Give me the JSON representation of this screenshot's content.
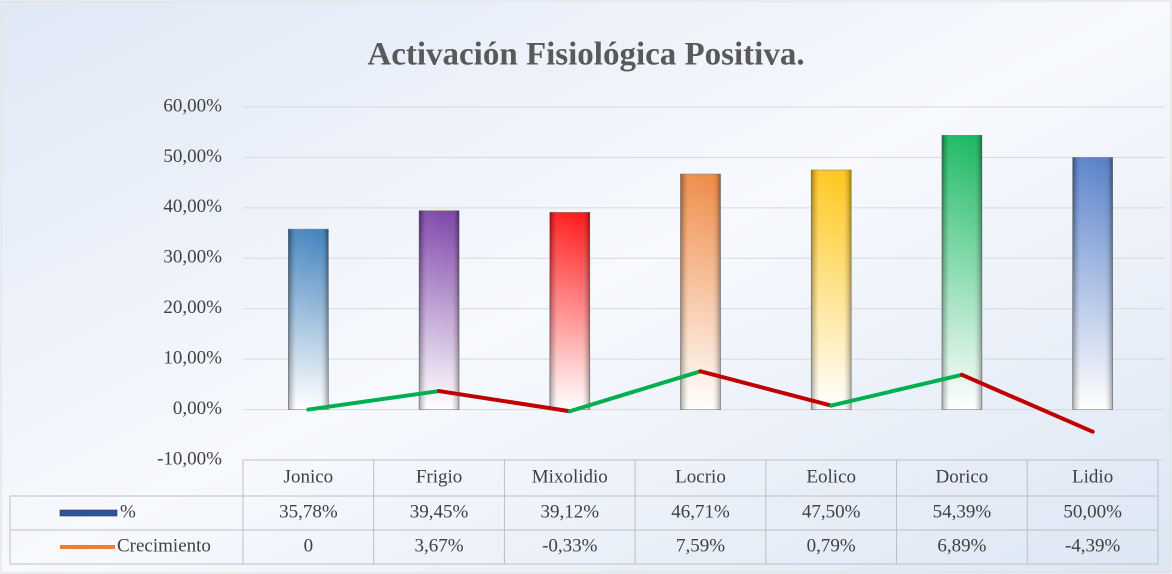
{
  "chart_data": {
    "type": "bar",
    "title": "Activación Fisiológica Positiva.",
    "categories": [
      "Jonico",
      "Frigio",
      "Mixolidio",
      "Locrio",
      "Eolico",
      "Dorico",
      "Lidio"
    ],
    "series": [
      {
        "name": "%",
        "type": "bar",
        "color": "#2f5597",
        "colors": [
          "#2e75b6",
          "#7030a0",
          "#ff0000",
          "#ed7d31",
          "#ffc000",
          "#00b050",
          "#4472c4"
        ],
        "values": [
          35.78,
          39.45,
          39.12,
          46.71,
          47.5,
          54.39,
          50.0
        ],
        "value_labels": [
          "35,78%",
          "39,45%",
          "39,12%",
          "46,71%",
          "47,50%",
          "54,39%",
          "50,00%"
        ]
      },
      {
        "name": "Crecimiento",
        "type": "line",
        "color": "#ed7d31",
        "increase_color": "#00b050",
        "decrease_color": "#c00000",
        "values": [
          0,
          3.67,
          -0.33,
          7.59,
          0.79,
          6.89,
          -4.39
        ],
        "value_labels": [
          "0",
          "3,67%",
          "-0,33%",
          "7,59%",
          "0,79%",
          "6,89%",
          "-4,39%"
        ]
      }
    ],
    "ylim": [
      -10,
      60
    ],
    "yticks": [
      {
        "value": -10,
        "label": "-10,00%"
      },
      {
        "value": 0,
        "label": "0,00%"
      },
      {
        "value": 10,
        "label": "10,00%"
      },
      {
        "value": 20,
        "label": "20,00%"
      },
      {
        "value": 30,
        "label": "30,00%"
      },
      {
        "value": 40,
        "label": "40,00%"
      },
      {
        "value": 50,
        "label": "50,00%"
      },
      {
        "value": 60,
        "label": "60,00%"
      }
    ],
    "grid": true,
    "data_table": true
  }
}
